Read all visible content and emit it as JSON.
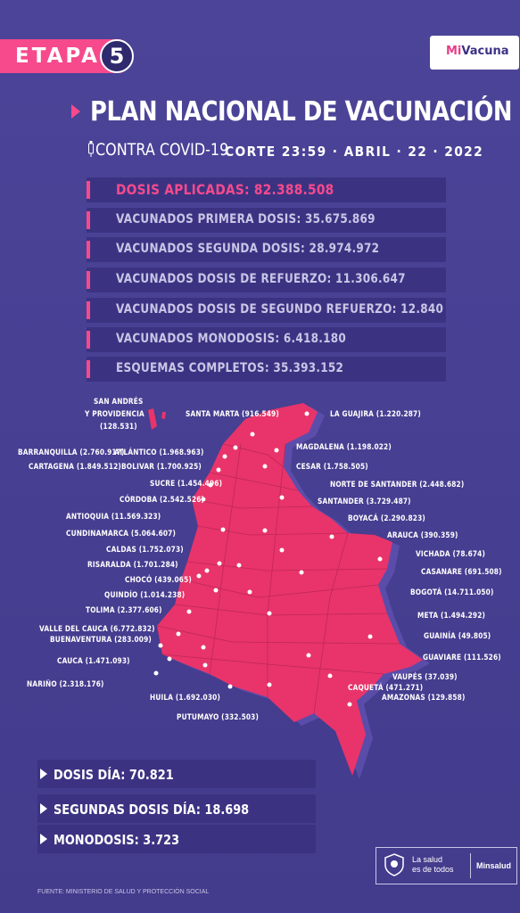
{
  "header": {
    "stage_label": "ETAPA",
    "stage_number": "5",
    "logo_text_a": "Mi",
    "logo_text_b": "Vacuna"
  },
  "title": {
    "main": "PLAN NACIONAL DE VACUNACIÓN",
    "subtitle": "CONTRA COVID-19",
    "cutoff": "CORTE 23:59 · ABRIL · 22 · 2022"
  },
  "stats": [
    {
      "label": "DOSIS APLICADAS: 82.388.508",
      "highlight": true
    },
    {
      "label": "VACUNADOS PRIMERA DOSIS: 35.675.869",
      "highlight": false
    },
    {
      "label": "VACUNADOS SEGUNDA DOSIS: 28.974.972",
      "highlight": false
    },
    {
      "label": "VACUNADOS  DOSIS DE REFUERZO: 11.306.647",
      "highlight": false
    },
    {
      "label": "VACUNADOS  DOSIS DE SEGUNDO REFUERZO: 12.840",
      "highlight": false
    },
    {
      "label": "VACUNADOS MONODOSIS: 6.418.180",
      "highlight": false
    },
    {
      "label": "ESQUEMAS COMPLETOS: 35.393.152",
      "highlight": false
    }
  ],
  "map_labels": {
    "san_andres_1": "SAN ANDRÉS",
    "san_andres_2": "Y PROVIDENCIA",
    "san_andres_3": "(128.531)",
    "santa_marta": "SANTA MARTA (916.549)",
    "la_guajira": "LA GUAJIRA (1.220.287)",
    "barranquilla": "BARRANQUILLA (2.760.917)",
    "atlantico": "ATLÁNTICO (1.968.963)",
    "magdalena": "MAGDALENA (1.198.022)",
    "cartagena": "CARTAGENA (1.849.512)",
    "bolivar": "BOLIVAR (1.700.925)",
    "cesar": "CESAR (1.758.505)",
    "sucre": "SUCRE (1.454.496)",
    "norte_santander": "NORTE DE SANTANDER (2.448.682)",
    "cordoba": "CÓRDOBA (2.542.526)",
    "santander": "SANTANDER (3.729.487)",
    "antioquia": "ANTIOQUIA (11.569.323)",
    "boyaca": "BOYACÁ (2.290.823)",
    "cundinamarca": "CUNDINAMARCA (5.064.607)",
    "arauca": "ARAUCA (390.359)",
    "caldas": "CALDAS (1.752.073)",
    "vichada": "VICHADA (78.674)",
    "risaralda": "RISARALDA (1.701.284)",
    "casanare": "CASANARE (691.508)",
    "choco": "CHOCÓ (439.065)",
    "quindio": "QUINDÍO (1.014.238)",
    "bogota": "BOGOTÁ (14.711.050)",
    "tolima": "TOLIMA (2.377.606)",
    "meta": "META (1.494.292)",
    "valle": "VALLE DEL CAUCA (6.772.832)",
    "buenaventura": "BUENAVENTURA (283.009)",
    "guainia": "GUAINÍA (49.805)",
    "cauca": "CAUCA (1.471.093)",
    "guaviare": "GUAVIARE (111.526)",
    "vaupes": "VAUPÉS (37.039)",
    "narino": "NARIÑO (2.318.176)",
    "caqueta": "CAQUETÁ (471.271)",
    "huila": "HUILA (1.692.030)",
    "amazonas": "AMAZONAS (129.858)",
    "putumayo": "PUTUMAYO (332.503)"
  },
  "daily": [
    {
      "label": "DOSIS DÍA: 70.821"
    },
    {
      "label": "SEGUNDAS DOSIS DÍA: 18.698"
    },
    {
      "label": "MONODOSIS: 3.723"
    }
  ],
  "footer": {
    "slogan_1": "La salud",
    "slogan_2": "es de todos",
    "ministry": "Minsalud",
    "source": "FUENTE: MINISTERIO DE SALUD Y PROTECCIÓN SOCIAL"
  },
  "colors": {
    "background": "#4a4296",
    "accent": "#f64a8c",
    "panel": "#3b3382",
    "map": "#e8346a"
  }
}
